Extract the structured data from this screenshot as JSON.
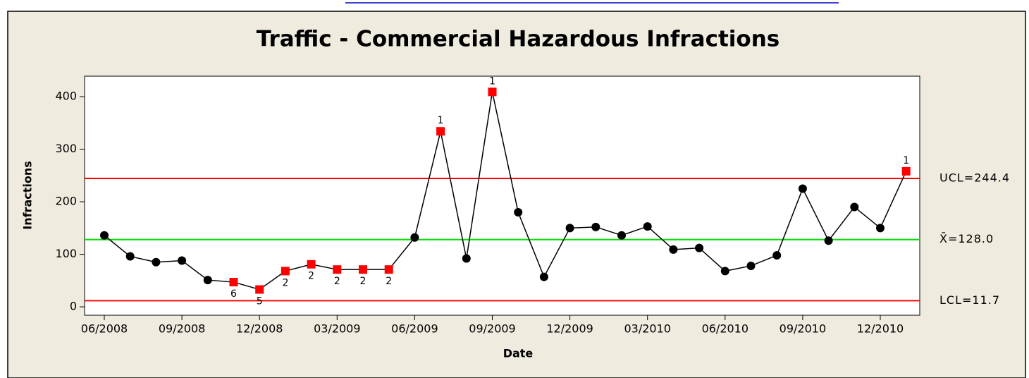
{
  "chart_data": {
    "type": "line",
    "title": "Traffic - Commercial Hazardous Infractions",
    "xlabel": "Date",
    "ylabel": "Infractions",
    "categories": [
      "06/2008",
      null,
      null,
      "09/2008",
      null,
      null,
      "12/2008",
      null,
      null,
      "03/2009",
      null,
      null,
      "06/2009",
      null,
      null,
      "09/2009",
      null,
      null,
      "12/2009",
      null,
      null,
      "03/2010",
      null,
      null,
      "06/2010",
      null,
      null,
      "09/2010",
      null,
      null,
      "12/2010",
      null
    ],
    "series": [
      {
        "name": "Infractions",
        "color": "#000000",
        "flag_color": "#ff0000",
        "values": [
          136,
          96,
          85,
          88,
          51,
          47,
          33,
          68,
          81,
          71,
          71,
          71,
          132,
          334,
          92,
          409,
          180,
          57,
          150,
          152,
          136,
          153,
          109,
          112,
          68,
          78,
          98,
          225,
          126,
          190,
          150,
          258
        ],
        "point_labels": [
          null,
          null,
          null,
          null,
          null,
          "6",
          "5",
          "2",
          "2",
          "2",
          "2",
          "2",
          null,
          "1",
          null,
          "1",
          null,
          null,
          null,
          null,
          null,
          null,
          null,
          null,
          null,
          null,
          null,
          null,
          null,
          null,
          null,
          "1"
        ]
      }
    ],
    "control_lines": [
      {
        "label": "UCL=244.4",
        "value": 244.4,
        "color": "#ff0000"
      },
      {
        "label": "X̄=128.0",
        "value": 128.0,
        "color": "#00e000"
      },
      {
        "label": "LCL=11.7",
        "value": 11.7,
        "color": "#ff0000"
      }
    ],
    "ylim": [
      -16,
      439
    ],
    "yticks": [
      0,
      100,
      200,
      300,
      400
    ]
  }
}
